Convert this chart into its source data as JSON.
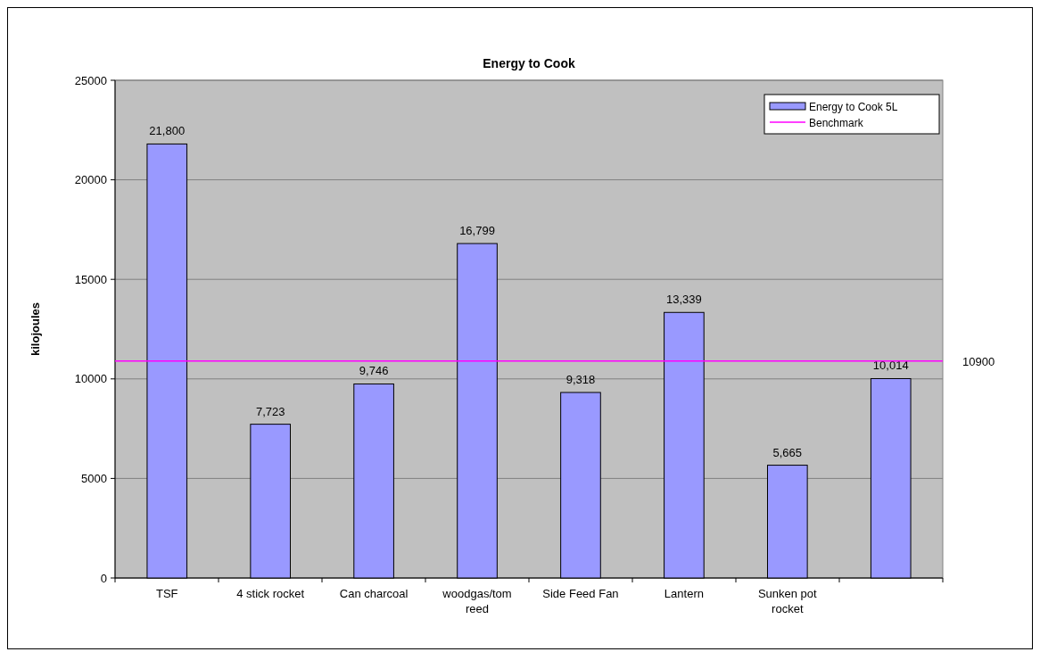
{
  "chart_data": {
    "type": "bar",
    "title": "Energy to Cook",
    "ylabel": "kilojoules",
    "categories": [
      "TSF",
      "4 stick rocket",
      "Can charcoal",
      "woodgas/tom reed",
      "Side Feed Fan",
      "Lantern",
      "Sunken pot rocket",
      null
    ],
    "series": [
      {
        "name": "Energy to Cook 5L",
        "color": "#9999ff",
        "values": [
          21800,
          7723,
          9746,
          16799,
          9318,
          13339,
          5665,
          10014
        ],
        "value_labels": [
          "21,800",
          "7,723",
          "9,746",
          "16,799",
          "9,318",
          "13,339",
          "5,665",
          "10,014"
        ]
      }
    ],
    "ref_lines": [
      {
        "axis": "y",
        "value": 10900,
        "label": "Benchmark",
        "color": "#ff00ff"
      }
    ],
    "annotations": [
      "10900"
    ],
    "ylim": [
      0,
      25000
    ],
    "yticks": [
      0,
      5000,
      10000,
      15000,
      20000,
      25000
    ],
    "grid": "y",
    "legend": "top right"
  }
}
